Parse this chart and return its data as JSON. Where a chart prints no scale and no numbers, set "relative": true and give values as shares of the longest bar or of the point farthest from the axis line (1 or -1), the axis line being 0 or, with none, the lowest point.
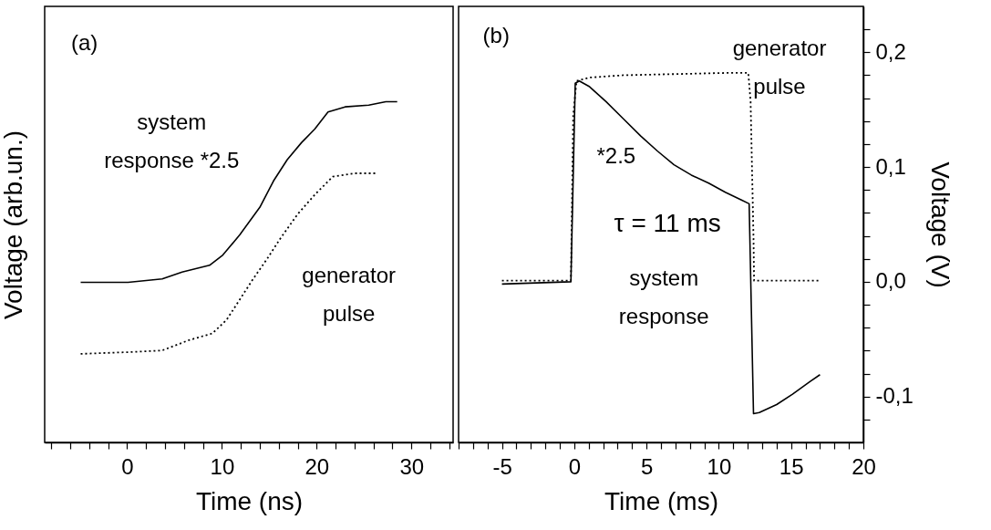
{
  "chart_data": [
    {
      "type": "line",
      "relative": true,
      "xlabel": "Time (ns)",
      "ylabel": "Voltage (arb.un.)",
      "xlim": [
        -8.7,
        34.4
      ],
      "xticks": [
        {
          "value": -8,
          "label": null
        },
        {
          "value": -6,
          "label": null
        },
        {
          "value": -4,
          "label": null
        },
        {
          "value": -2,
          "label": null
        },
        0,
        {
          "value": 2,
          "label": null
        },
        {
          "value": 4,
          "label": null
        },
        {
          "value": 6,
          "label": null
        },
        {
          "value": 8,
          "label": null
        },
        10,
        {
          "value": 12,
          "label": null
        },
        {
          "value": 14,
          "label": null
        },
        {
          "value": 16,
          "label": null
        },
        {
          "value": 18,
          "label": null
        },
        20,
        {
          "value": 22,
          "label": null
        },
        {
          "value": 24,
          "label": null
        },
        {
          "value": 26,
          "label": null
        },
        {
          "value": 28,
          "label": null
        },
        30,
        {
          "value": 32,
          "label": null
        },
        {
          "value": 34,
          "label": null
        }
      ],
      "annotations": [
        "(a)"
      ],
      "series": [
        {
          "name": "system response *2.5",
          "color": "#000000",
          "line_style": "solid",
          "x": [
            -4.9,
            0.1,
            3.7,
            5.8,
            8.7,
            10.1,
            11.9,
            14.0,
            15.5,
            16.9,
            18.4,
            19.8,
            21.2,
            23.0,
            25.5,
            27.3,
            28.5
          ],
          "values": [
            0.47,
            0.47,
            0.48,
            0.5,
            0.52,
            0.55,
            0.61,
            0.69,
            0.77,
            0.83,
            0.88,
            0.92,
            0.97,
            0.985,
            0.99,
            1,
            1
          ]
        },
        {
          "name": "generator pulse",
          "color": "#000000",
          "line_style": "dotted",
          "x": [
            -4.9,
            0.1,
            3.7,
            6.5,
            9.0,
            10.5,
            11.9,
            13.3,
            14.8,
            16.2,
            18.0,
            19.9,
            21.7,
            24.0,
            26.2
          ],
          "values": [
            0.26,
            0.265,
            0.27,
            0.3,
            0.32,
            0.36,
            0.42,
            0.48,
            0.54,
            0.6,
            0.67,
            0.73,
            0.78,
            0.79,
            0.79
          ]
        }
      ]
    },
    {
      "type": "line",
      "xlabel": "Time (ms)",
      "ylabel": "Voltage (V)",
      "xlim": [
        -8,
        20
      ],
      "ylim": [
        -0.14,
        0.24
      ],
      "xticks": [
        {
          "value": -8,
          "label": null
        },
        {
          "value": -7,
          "label": null
        },
        {
          "value": -6,
          "label": null
        },
        -5,
        {
          "value": -4,
          "label": null
        },
        {
          "value": -3,
          "label": null
        },
        {
          "value": -2,
          "label": null
        },
        {
          "value": -1,
          "label": null
        },
        0,
        {
          "value": 1,
          "label": null
        },
        {
          "value": 2,
          "label": null
        },
        {
          "value": 3,
          "label": null
        },
        {
          "value": 4,
          "label": null
        },
        5,
        {
          "value": 6,
          "label": null
        },
        {
          "value": 7,
          "label": null
        },
        {
          "value": 8,
          "label": null
        },
        {
          "value": 9,
          "label": null
        },
        10,
        {
          "value": 11,
          "label": null
        },
        {
          "value": 12,
          "label": null
        },
        {
          "value": 13,
          "label": null
        },
        {
          "value": 14,
          "label": null
        },
        15,
        {
          "value": 16,
          "label": null
        },
        {
          "value": 17,
          "label": null
        },
        {
          "value": 18,
          "label": null
        },
        {
          "value": 19,
          "label": null
        },
        20
      ],
      "yticks": [
        {
          "value": -0.12,
          "label": null
        },
        {
          "value": -0.1,
          "label": "-0,1"
        },
        {
          "value": -0.08,
          "label": null
        },
        {
          "value": -0.06,
          "label": null
        },
        {
          "value": -0.04,
          "label": null
        },
        {
          "value": -0.02,
          "label": null
        },
        {
          "value": 0,
          "label": "0,0"
        },
        {
          "value": 0.02,
          "label": null
        },
        {
          "value": 0.04,
          "label": null
        },
        {
          "value": 0.06,
          "label": null
        },
        {
          "value": 0.08,
          "label": null
        },
        {
          "value": 0.1,
          "label": "0,1"
        },
        {
          "value": 0.12,
          "label": null
        },
        {
          "value": 0.14,
          "label": null
        },
        {
          "value": 0.16,
          "label": null
        },
        {
          "value": 0.18,
          "label": null
        },
        {
          "value": 0.2,
          "label": "0,2"
        },
        {
          "value": 0.22,
          "label": null
        }
      ],
      "annotations": [
        "(b)",
        "*2.5",
        "τ = 11 ms"
      ],
      "series": [
        {
          "name": "system response",
          "color": "#000000",
          "line_style": "solid",
          "x": [
            -5.0,
            -0.23,
            0.07,
            0.35,
            1.06,
            2.2,
            3.4,
            4.6,
            5.75,
            6.9,
            8.1,
            9.3,
            10.45,
            11.6,
            12.1,
            12.4,
            12.8,
            14.0,
            15.1,
            16.3,
            17.0
          ],
          "values": [
            -0.002,
            0,
            0.173,
            0.175,
            0.17,
            0.157,
            0.142,
            0.127,
            0.114,
            0.102,
            0.093,
            0.086,
            0.078,
            0.071,
            0.068,
            -0.115,
            -0.114,
            -0.107,
            -0.098,
            -0.087,
            -0.081
          ]
        },
        {
          "name": "generator pulse",
          "color": "#000000",
          "line_style": "dotted",
          "x": [
            -5.0,
            -0.23,
            -0.07,
            0.16,
            1.06,
            3.4,
            10.45,
            12.04,
            12.2,
            12.4,
            12.44,
            17.0
          ],
          "values": [
            0.001,
            0.001,
            0.145,
            0.175,
            0.178,
            0.18,
            0.182,
            0.182,
            0.157,
            0.038,
            0.001,
            0.001
          ]
        }
      ]
    }
  ]
}
